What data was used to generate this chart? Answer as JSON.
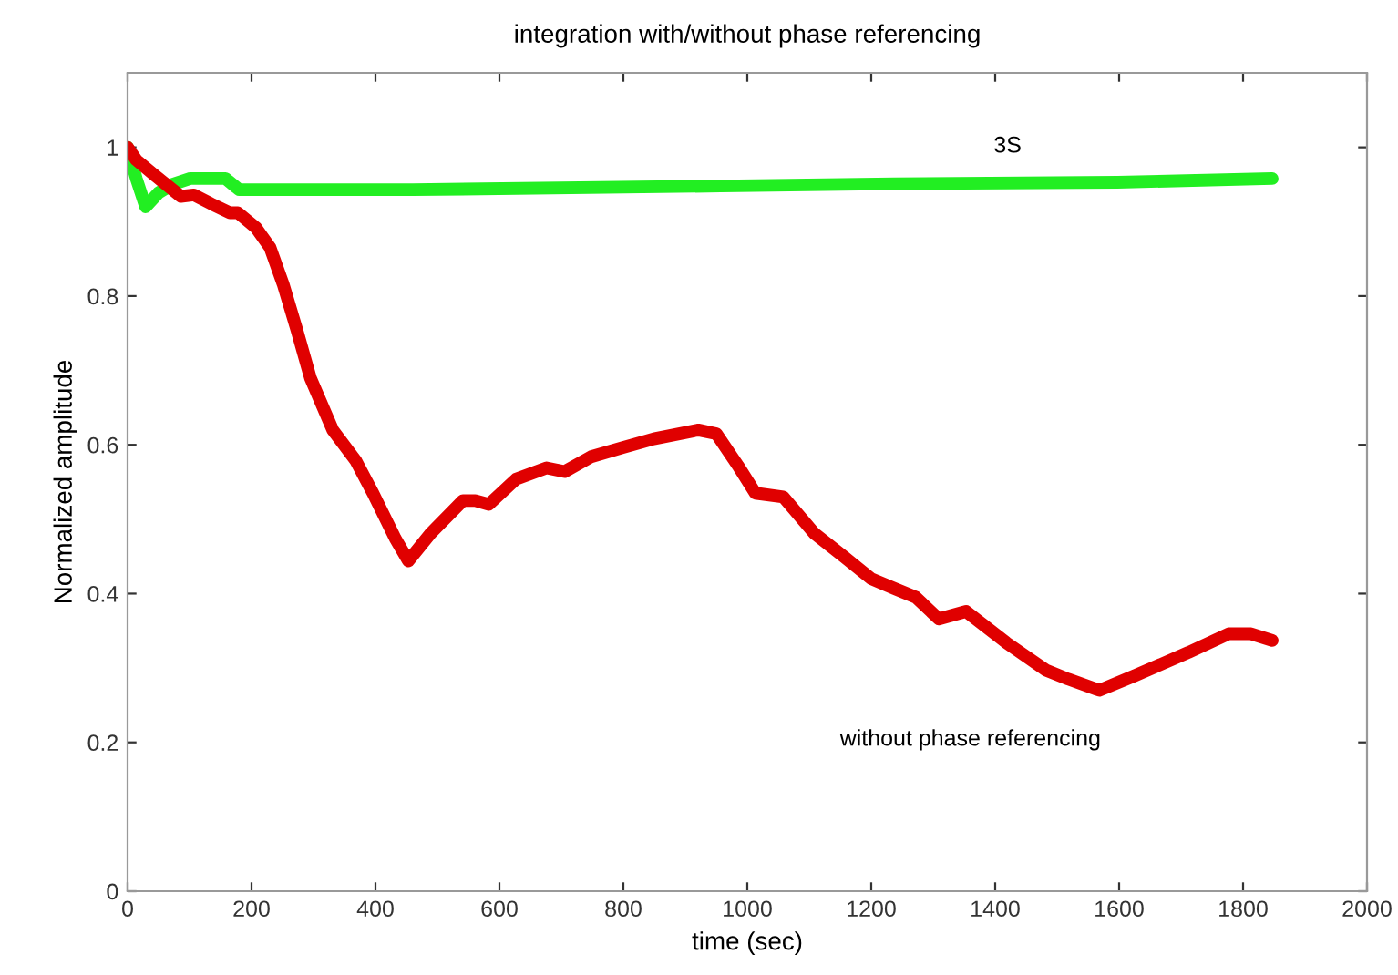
{
  "chart_data": {
    "type": "line",
    "title": "integration with/without phase referencing",
    "xlabel": "time (sec)",
    "ylabel": "Normalized amplitude",
    "xlim": [
      0,
      2000
    ],
    "xticks": [
      0,
      200,
      400,
      600,
      800,
      1000,
      1200,
      1400,
      1600,
      1800,
      2000
    ],
    "ylim": [
      0,
      1.1
    ],
    "yticks": [
      0,
      0.2,
      0.4,
      0.6,
      0.8,
      1
    ],
    "grid": false,
    "legend": false,
    "marker": "none",
    "line_style": "solid",
    "series": [
      {
        "color": "#22ee22",
        "x": [
          0,
          14,
          29,
          50,
          72,
          101,
          158,
          180,
          460,
          957,
          1237,
          1597,
          1847
        ],
        "values": [
          1.0,
          0.958,
          0.92,
          0.939,
          0.95,
          0.958,
          0.958,
          0.943,
          0.943,
          0.948,
          0.951,
          0.953,
          0.958
        ]
      },
      {
        "color": "#e00000",
        "x": [
          0,
          14,
          43,
          86,
          107,
          135,
          165,
          178,
          207,
          230,
          251,
          273,
          295,
          331,
          368,
          396,
          432,
          453,
          489,
          541,
          561,
          583,
          627,
          676,
          705,
          748,
          798,
          849,
          921,
          950,
          985,
          1013,
          1058,
          1108,
          1157,
          1200,
          1237,
          1272,
          1309,
          1353,
          1418,
          1482,
          1518,
          1568,
          1626,
          1712,
          1777,
          1813,
          1847
        ],
        "values": [
          1.0,
          0.983,
          0.963,
          0.934,
          0.936,
          0.924,
          0.912,
          0.912,
          0.892,
          0.865,
          0.816,
          0.755,
          0.69,
          0.62,
          0.579,
          0.535,
          0.474,
          0.444,
          0.481,
          0.525,
          0.525,
          0.52,
          0.554,
          0.569,
          0.564,
          0.584,
          0.596,
          0.608,
          0.62,
          0.615,
          0.572,
          0.535,
          0.53,
          0.481,
          0.449,
          0.42,
          0.407,
          0.395,
          0.366,
          0.376,
          0.334,
          0.297,
          0.285,
          0.27,
          0.29,
          0.321,
          0.346,
          0.346,
          0.337
        ]
      }
    ],
    "annotations": [
      "3S",
      "without phase referencing"
    ]
  }
}
